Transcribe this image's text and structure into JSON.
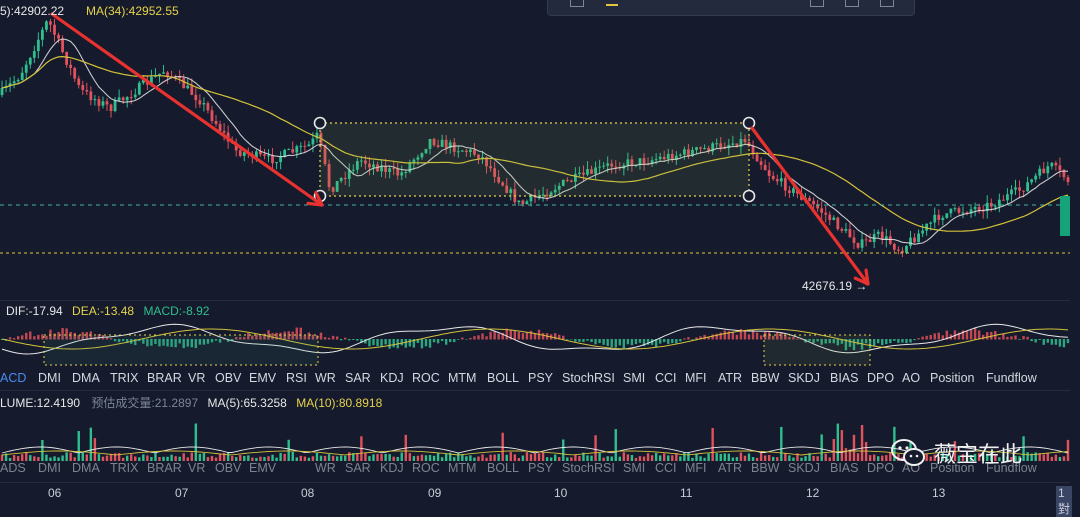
{
  "main_legend": {
    "ma_a": "5):42902.22",
    "ma_b": "MA(34):42952.55"
  },
  "annotations": {
    "low_price": "42676.19",
    "arrow": "→"
  },
  "macd_legend": {
    "dif": "DIF:-17.94",
    "dea": "DEA:-13.48",
    "macd": "MACD:-8.92"
  },
  "volume_legend": {
    "volume": "LUME:12.4190",
    "estimate": "预估成交量:21.2897",
    "ma5": "MA(5):65.3258",
    "ma10": "MA(10):80.8918"
  },
  "indicator_tabs": [
    "ACD",
    "DMI",
    "DMA",
    "TRIX",
    "BRAR",
    "VR",
    "OBV",
    "EMV",
    "RSI",
    "WR",
    "SAR",
    "KDJ",
    "ROC",
    "MTM",
    "BOLL",
    "PSY",
    "StochRSI",
    "SMI",
    "CCI",
    "MFI",
    "ATR",
    "BBW",
    "SKDJ",
    "BIAS",
    "DPO",
    "AO",
    "Position",
    "Fundflow"
  ],
  "indicator_tabs_lower": [
    "ADS",
    "DMI",
    "DMA",
    "TRIX",
    "BRAR",
    "VR",
    "OBV",
    "EMV",
    "WR",
    "SAR",
    "KDJ",
    "ROC",
    "MTM",
    "BOLL",
    "PSY",
    "StochRSI",
    "SMI",
    "CCI",
    "MFI",
    "ATR",
    "BBW",
    "SKDJ",
    "BIAS",
    "DPO",
    "AO",
    "Position",
    "Fundflow"
  ],
  "date_axis": [
    "06",
    "07",
    "08",
    "09",
    "10",
    "11",
    "12",
    "13"
  ],
  "date_axis_cut": "1對",
  "watermark": {
    "text": "薇宝在此",
    "icon": "wechat-icon"
  },
  "colors": {
    "background": "#151a2c",
    "up": "#2fbf8f",
    "down": "#e0525c",
    "ma_yellow": "#d4c23a",
    "ma_white": "#e8e8e8",
    "trend_arrow": "#e8322f",
    "box_line": "#e6d34a",
    "dashed_teal": "#3fb8a5",
    "dashed_yellow": "#d9c93a",
    "accent_blue": "#4a8cf0"
  },
  "chart_data": {
    "type": "candlestick",
    "x_ticks": [
      "06",
      "07",
      "08",
      "09",
      "10",
      "11",
      "12",
      "13"
    ],
    "indicators": {
      "DIF": -17.94,
      "DEA": -13.48,
      "MACD": -8.92,
      "VOLUME": 12.419,
      "estimated_volume": 21.2897,
      "VOL_MA5": 65.3258,
      "VOL_MA10": 80.8918
    },
    "price_labels": {
      "MA34": 42952.55,
      "low_marker": 42676.19
    },
    "drawings": [
      "down-trend arrow 06 → 08",
      "consolidation rectangle 08 → 11",
      "down-trend arrow 11 → 12"
    ]
  }
}
